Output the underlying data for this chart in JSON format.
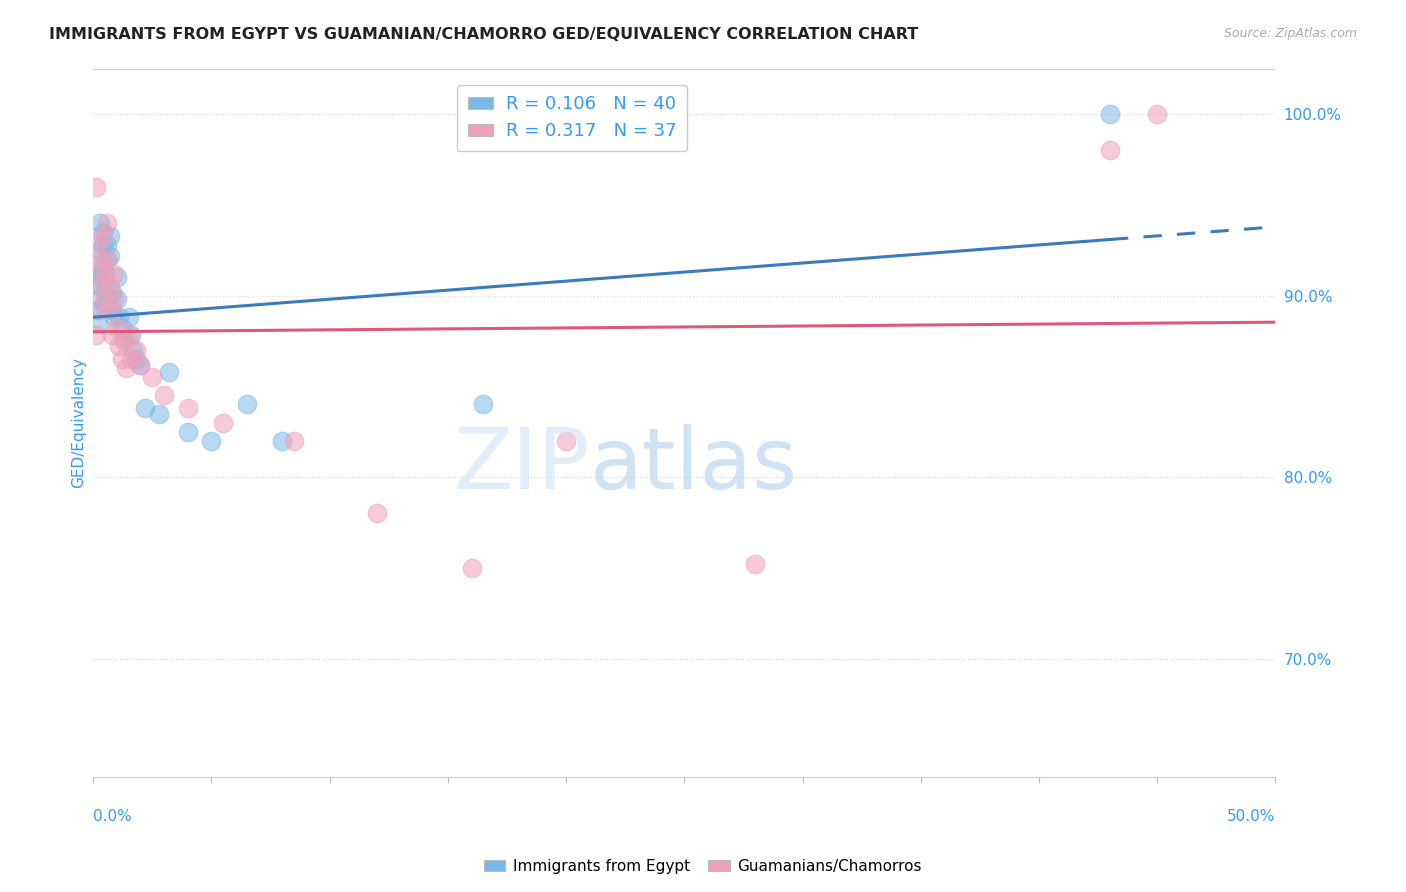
{
  "title": "IMMIGRANTS FROM EGYPT VS GUAMANIAN/CHAMORRO GED/EQUIVALENCY CORRELATION CHART",
  "source": "Source: ZipAtlas.com",
  "ylabel": "GED/Equivalency",
  "right_yticks": [
    "100.0%",
    "90.0%",
    "80.0%",
    "70.0%"
  ],
  "right_ytick_vals": [
    1.0,
    0.9,
    0.8,
    0.7
  ],
  "legend1_r": "0.106",
  "legend1_n": "40",
  "legend2_r": "0.317",
  "legend2_n": "37",
  "color_blue": "#7ab8e8",
  "color_pink": "#f0a0b8",
  "color_line_blue": "#3a7abf",
  "color_line_pink": "#e05878",
  "color_title": "#222222",
  "color_legend_r": "#3399ff",
  "color_legend_n": "#3399ff",
  "color_axis_label": "#3399ff",
  "color_source": "#aaaaaa",
  "xlim": [
    0.0,
    0.5
  ],
  "ylim": [
    0.635,
    1.025
  ],
  "blue_x": [
    0.001,
    0.001,
    0.002,
    0.002,
    0.002,
    0.003,
    0.003,
    0.003,
    0.004,
    0.004,
    0.004,
    0.005,
    0.005,
    0.005,
    0.006,
    0.006,
    0.007,
    0.007,
    0.008,
    0.008,
    0.009,
    0.01,
    0.01,
    0.011,
    0.012,
    0.013,
    0.015,
    0.016,
    0.017,
    0.018,
    0.02,
    0.022,
    0.028,
    0.032,
    0.04,
    0.05,
    0.065,
    0.08,
    0.165,
    0.43
  ],
  "blue_y": [
    0.916,
    0.906,
    0.898,
    0.892,
    0.885,
    0.94,
    0.925,
    0.91,
    0.935,
    0.928,
    0.915,
    0.91,
    0.902,
    0.895,
    0.928,
    0.92,
    0.933,
    0.922,
    0.902,
    0.892,
    0.888,
    0.91,
    0.898,
    0.888,
    0.882,
    0.876,
    0.888,
    0.878,
    0.87,
    0.865,
    0.862,
    0.838,
    0.835,
    0.858,
    0.825,
    0.82,
    0.84,
    0.82,
    0.84,
    1.0
  ],
  "pink_x": [
    0.001,
    0.001,
    0.002,
    0.002,
    0.003,
    0.003,
    0.004,
    0.004,
    0.005,
    0.005,
    0.006,
    0.006,
    0.007,
    0.008,
    0.008,
    0.009,
    0.009,
    0.01,
    0.011,
    0.012,
    0.013,
    0.014,
    0.015,
    0.016,
    0.018,
    0.02,
    0.025,
    0.03,
    0.04,
    0.055,
    0.085,
    0.12,
    0.16,
    0.2,
    0.28,
    0.43,
    0.45
  ],
  "pink_y": [
    0.96,
    0.878,
    0.93,
    0.892,
    0.92,
    0.905,
    0.932,
    0.915,
    0.91,
    0.898,
    0.94,
    0.92,
    0.905,
    0.892,
    0.878,
    0.912,
    0.898,
    0.882,
    0.872,
    0.865,
    0.875,
    0.86,
    0.878,
    0.865,
    0.87,
    0.862,
    0.855,
    0.845,
    0.838,
    0.83,
    0.82,
    0.78,
    0.75,
    0.82,
    0.752,
    0.98,
    1.0
  ]
}
